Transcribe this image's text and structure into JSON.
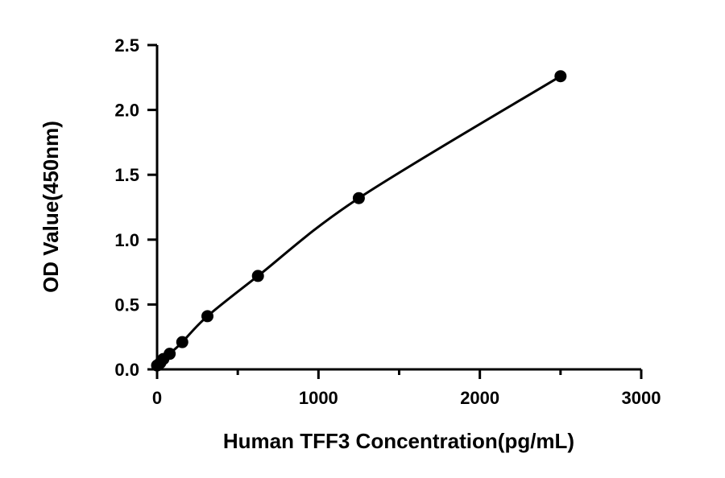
{
  "chart_data": {
    "type": "scatter",
    "xlabel": "Human TFF3 Concentration(pg/mL)",
    "ylabel": "OD Value(450nm)",
    "xlim": [
      0,
      3000
    ],
    "ylim": [
      0,
      2.5
    ],
    "x_ticks": [
      "0",
      "1000",
      "2000",
      "3000"
    ],
    "x_tick_values": [
      0,
      1000,
      2000,
      3000
    ],
    "x_minor_tick_values": [
      500,
      1500,
      2500
    ],
    "y_ticks": [
      "0.0",
      "0.5",
      "1.0",
      "1.5",
      "2.0",
      "2.5"
    ],
    "y_tick_values": [
      0,
      0.5,
      1.0,
      1.5,
      2.0,
      2.5
    ],
    "grid": false,
    "fit_curve": true,
    "series": [
      {
        "x": [
          0,
          19.5,
          39,
          78,
          156,
          312,
          625,
          1250,
          2500
        ],
        "y": [
          0.03,
          0.05,
          0.08,
          0.12,
          0.21,
          0.41,
          0.72,
          1.32,
          2.26
        ]
      }
    ]
  }
}
